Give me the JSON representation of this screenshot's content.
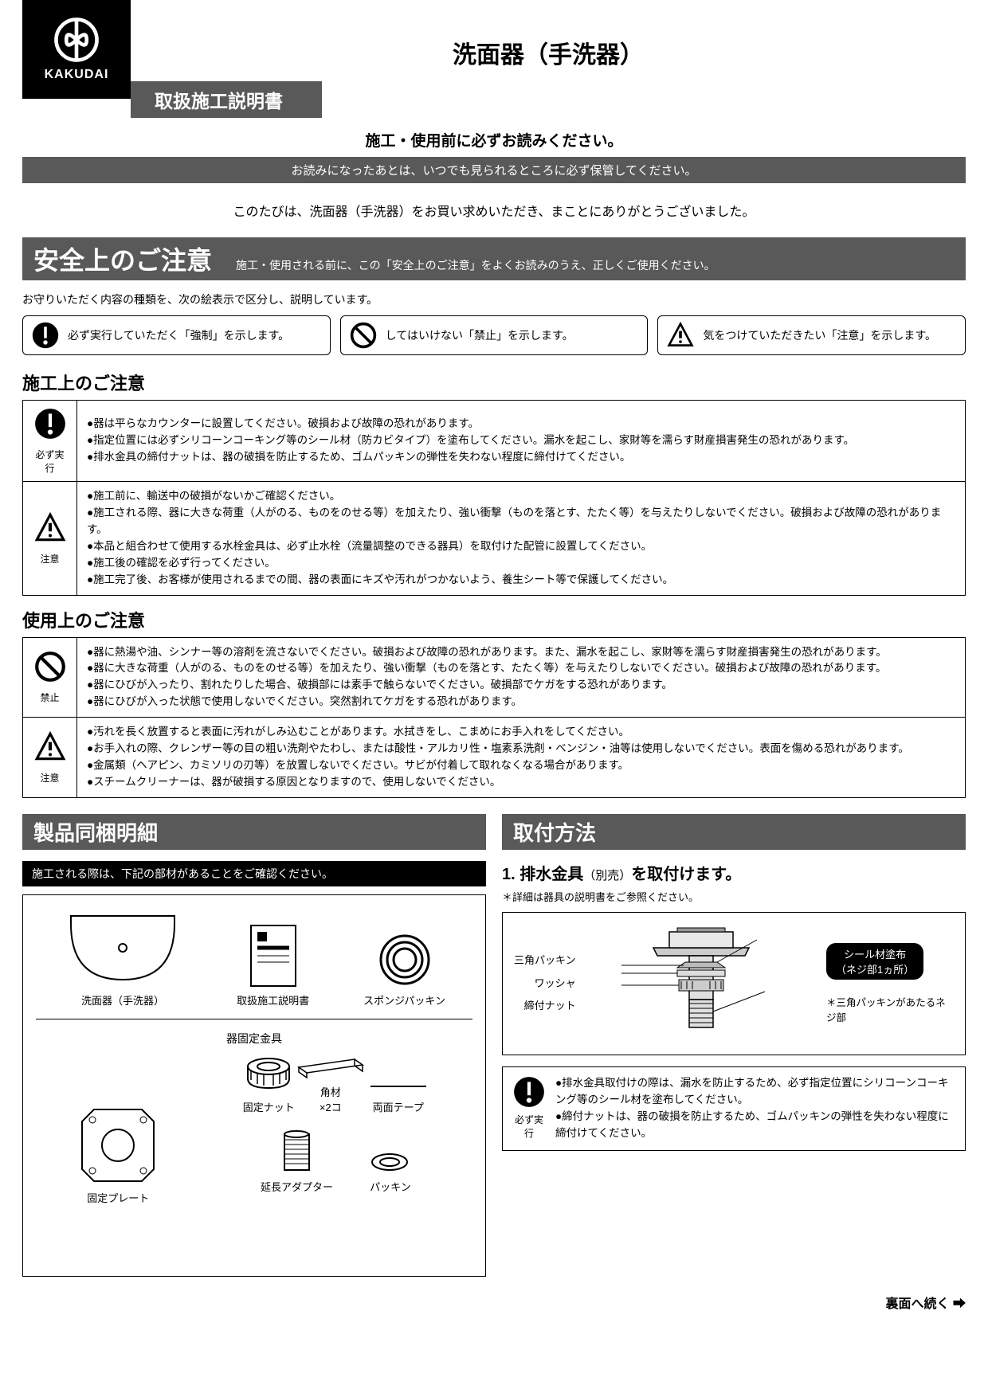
{
  "brand": "KAKUDAI",
  "product_title": "洗面器（手洗器）",
  "manual_title": "取扱施工説明書",
  "subtitle": "施工・使用前に必ずお読みください。",
  "keep_notice": "お読みになったあとは、いつでも見られるところに必ず保管してください。",
  "thanks": "このたびは、洗面器（手洗器）をお買い求めいただき、まことにありがとうございました。",
  "safety": {
    "heading": "安全上のご注意",
    "sub": "施工・使用される前に、この「安全上のご注意」をよくお読みのうえ、正しくご使用ください。",
    "intro": "お守りいただく内容の種類を、次の絵表示で区分し、説明しています。",
    "legend": {
      "mandatory": "必ず実行していただく「強制」を示します。",
      "prohibit": "してはいけない「禁止」を示します。",
      "caution": "気をつけていただきたい「注意」を示します。"
    }
  },
  "labels": {
    "mandatory": "必ず実行",
    "caution": "注意",
    "prohibit": "禁止"
  },
  "install_heading": "施工上のご注意",
  "install_mandatory": [
    "器は平らなカウンターに設置してください。破損および故障の恐れがあります。",
    "指定位置には必ずシリコーンコーキング等のシール材（防カビタイプ）を塗布してください。漏水を起こし、家財等を濡らす財産損害発生の恐れがあります。",
    "排水金具の締付ナットは、器の破損を防止するため、ゴムパッキンの弾性を失わない程度に締付けてください。"
  ],
  "install_caution_lines": [
    "施工前に、輸送中の破損がないかご確認ください。",
    "施工される際、器に大きな荷重（人がのる、ものをのせる等）を加えたり、強い衝撃（ものを落とす、たたく等）を与えたりしないでください。破損および故障の恐れがあります。",
    "本品と組合わせて使用する水栓金具は、必ず止水栓（流量調整のできる器具）を取付けた配管に設置してください。",
    "施工後の確認を必ず行ってください。",
    "施工完了後、お客様が使用されるまでの間、器の表面にキズや汚れがつかないよう、養生シート等で保護してください。"
  ],
  "use_heading": "使用上のご注意",
  "use_prohibit": [
    "器に熱湯や油、シンナー等の溶剤を流さないでください。破損および故障の恐れがあります。また、漏水を起こし、家財等を濡らす財産損害発生の恐れがあります。",
    "器に大きな荷重（人がのる、ものをのせる等）を加えたり、強い衝撃（ものを落とす、たたく等）を与えたりしないでください。破損および故障の恐れがあります。",
    "器にひびが入ったり、割れたりした場合、破損部には素手で触らないでください。破損部でケガをする恐れがあります。",
    "器にひびが入った状態で使用しないでください。突然割れてケガをする恐れがあります。"
  ],
  "use_caution_lines": [
    "汚れを長く放置すると表面に汚れがしみ込むことがあります。水拭きをし、こまめにお手入れをしてください。",
    "お手入れの際、クレンザー等の目の粗い洗剤やたわし、または酸性・アルカリ性・塩素系洗剤・ベンジン・油等は使用しないでください。表面を傷める恐れがあります。",
    "金属類（ヘアピン、カミソリの刃等）を放置しないでください。サビが付着して取れなくなる場合があります。",
    "スチームクリーナーは、器が破損する原因となりますので、使用しないでください。"
  ],
  "parts_section": "製品同梱明細",
  "parts_intro": "施工される際は、下記の部材があることをご確認ください。",
  "parts": {
    "basin": "洗面器（手洗器）",
    "manual": "取扱施工説明書",
    "sponge": "スポンジパッキン",
    "bracket_heading": "器固定金具",
    "plate": "固定プレート",
    "nut": "固定ナット",
    "wood": "角材",
    "tape": "両面テープ",
    "tape_qty": "×2コ",
    "adapter": "延長アダプター",
    "packing": "パッキン"
  },
  "method_section": "取付方法",
  "step1": {
    "title_num": "1. ",
    "title": "排水金具",
    "title_small": "（別売）",
    "title_tail": "を取付けます。",
    "note": "＊詳細は器具の説明書をご参照ください。",
    "labels": {
      "triangle": "三角パッキン",
      "washer": "ワッシャ",
      "nut": "締付ナット"
    },
    "callout": "シール材塗布\n（ネジ部1ヵ所）",
    "note2": "＊三角パッキンがあたるネジ部"
  },
  "step1_caution": [
    "排水金具取付けの際は、漏水を防止するため、必ず指定位置にシリコーンコーキング等のシール材を塗布してください。",
    "締付ナットは、器の破損を防止するため、ゴムパッキンの弾性を失わない程度に締付けてください。"
  ],
  "footer": "裏面へ続く"
}
